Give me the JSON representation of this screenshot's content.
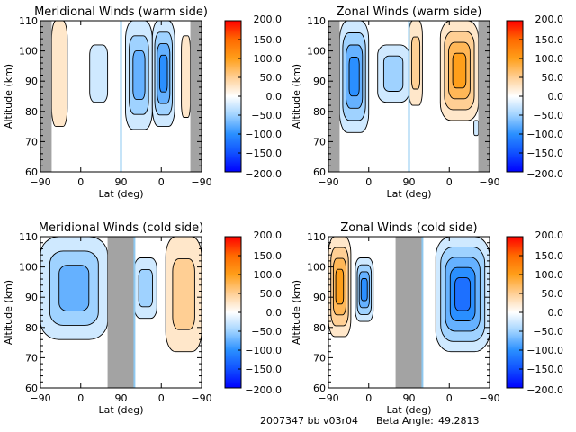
{
  "footer": {
    "run_id": "2007347 bb v03r04",
    "beta_label": "Beta Angle:",
    "beta_value": "49.2813"
  },
  "colorbar": {
    "ticks": [
      "200.0",
      "150.0",
      "100.0",
      "50.0",
      "0.0",
      "−50.0",
      "−100.0",
      "−150.0",
      "−200.0"
    ],
    "range": [
      -200,
      200
    ],
    "stops": [
      {
        "v": 200,
        "c": "#ff0000"
      },
      {
        "v": 150,
        "c": "#ff6a00"
      },
      {
        "v": 100,
        "c": "#ff9f1a"
      },
      {
        "v": 50,
        "c": "#ffcf94"
      },
      {
        "v": 0,
        "c": "#ffffff"
      },
      {
        "v": -50,
        "c": "#9fd2ff"
      },
      {
        "v": -100,
        "c": "#2a8fff"
      },
      {
        "v": -150,
        "c": "#1050ff"
      },
      {
        "v": -200,
        "c": "#0000ff"
      }
    ]
  },
  "colors": {
    "mask_gray": "#a3a3a3",
    "divider_blue": "#8ec8f0"
  },
  "chart_data": [
    {
      "type": "heatmap",
      "subtype": "filled-contour",
      "title": "Meridional Winds (warm side)",
      "xlabel": "Lat (deg)",
      "ylabel": "Altitude (km)",
      "xticks": [
        "−90",
        "0",
        "90",
        "0",
        "−90"
      ],
      "yticks": [
        "110",
        "100",
        "90",
        "80",
        "70",
        "60"
      ],
      "ylim": [
        60,
        110
      ],
      "x_domain": "lat -90 → 90 (ascending) then 90 → -90 (descending)",
      "masked_lat_ranges": [
        [
          -90,
          -65,
          "asc"
        ],
        [
          -65,
          -90,
          "desc"
        ]
      ],
      "divider_at": 90,
      "features": [
        {
          "sign": "positive",
          "lat_range": [
            -65,
            -30
          ],
          "alt_range": [
            75,
            110
          ],
          "peak": "~25",
          "branch": "asc"
        },
        {
          "sign": "negative",
          "lat_range": [
            20,
            60
          ],
          "alt_range": [
            83,
            102
          ],
          "peak": "~-25",
          "branch": "asc"
        },
        {
          "sign": "negative",
          "lat_range": [
            80,
            20
          ],
          "alt_range": [
            74,
            110
          ],
          "peak": "~-75",
          "branch": "desc"
        },
        {
          "sign": "negative",
          "lat_range": [
            20,
            -30
          ],
          "alt_range": [
            75,
            110
          ],
          "peak": "~-100",
          "branch": "desc"
        },
        {
          "sign": "positive",
          "lat_range": [
            -45,
            -65
          ],
          "alt_range": [
            78,
            105
          ],
          "peak": "~25",
          "branch": "desc"
        }
      ]
    },
    {
      "type": "heatmap",
      "subtype": "filled-contour",
      "title": "Zonal Winds (warm side)",
      "xlabel": "Lat (deg)",
      "ylabel": "Altitude (km)",
      "xticks": [
        "−90",
        "0",
        "90",
        "0",
        "−90"
      ],
      "yticks": [
        "110",
        "100",
        "90",
        "80",
        "70",
        "60"
      ],
      "ylim": [
        60,
        110
      ],
      "masked_lat_ranges": [
        [
          -90,
          -65,
          "asc"
        ],
        [
          -65,
          -90,
          "desc"
        ]
      ],
      "divider_at": 90,
      "features": [
        {
          "sign": "negative",
          "lat_range": [
            -65,
            0
          ],
          "alt_range": [
            73,
            110
          ],
          "peak": "~-100",
          "branch": "asc"
        },
        {
          "sign": "negative",
          "lat_range": [
            20,
            90
          ],
          "alt_range": [
            83,
            102
          ],
          "peak": "~-60",
          "branch": "asc"
        },
        {
          "sign": "positive",
          "lat_range": [
            90,
            60
          ],
          "alt_range": [
            82,
            110
          ],
          "peak": "~40",
          "branch": "desc"
        },
        {
          "sign": "positive",
          "lat_range": [
            20,
            -65
          ],
          "alt_range": [
            77,
            110
          ],
          "peak": "~110",
          "branch": "desc"
        },
        {
          "sign": "negative",
          "lat_range": [
            -55,
            -65
          ],
          "alt_range": [
            72,
            77
          ],
          "peak": "~-30",
          "branch": "desc"
        }
      ]
    },
    {
      "type": "heatmap",
      "subtype": "filled-contour",
      "title": "Meridional Winds (cold side)",
      "xlabel": "Lat (deg)",
      "ylabel": "Altitude (km)",
      "xticks": [
        "−90",
        "0",
        "90",
        "0",
        "−90"
      ],
      "yticks": [
        "110",
        "100",
        "90",
        "80",
        "70",
        "60"
      ],
      "ylim": [
        60,
        110
      ],
      "masked_lat_ranges": [
        [
          60,
          90,
          "asc"
        ],
        [
          90,
          60,
          "desc"
        ]
      ],
      "divider_at": 60,
      "features": [
        {
          "sign": "negative",
          "lat_range": [
            -90,
            60
          ],
          "alt_range": [
            76,
            110
          ],
          "peak": "~-75",
          "branch": "asc"
        },
        {
          "sign": "negative",
          "lat_range": [
            60,
            10
          ],
          "alt_range": [
            83,
            103
          ],
          "peak": "~-60",
          "branch": "desc"
        },
        {
          "sign": "positive",
          "lat_range": [
            -10,
            -90
          ],
          "alt_range": [
            72,
            110
          ],
          "peak": "~40",
          "branch": "desc"
        }
      ]
    },
    {
      "type": "heatmap",
      "subtype": "filled-contour",
      "title": "Zonal Winds (cold side)",
      "xlabel": "Lat (deg)",
      "ylabel": "Altitude (km)",
      "xticks": [
        "−90",
        "0",
        "90",
        "0",
        "−90"
      ],
      "yticks": [
        "110",
        "100",
        "90",
        "80",
        "70",
        "60"
      ],
      "ylim": [
        60,
        110
      ],
      "masked_lat_ranges": [
        [
          60,
          90,
          "asc"
        ],
        [
          90,
          60,
          "desc"
        ]
      ],
      "divider_at": 60,
      "features": [
        {
          "sign": "positive",
          "lat_range": [
            -90,
            -40
          ],
          "alt_range": [
            77,
            110
          ],
          "peak": "~110",
          "branch": "asc"
        },
        {
          "sign": "negative",
          "lat_range": [
            -30,
            10
          ],
          "alt_range": [
            82,
            103
          ],
          "peak": "~-90",
          "branch": "asc"
        },
        {
          "sign": "negative",
          "lat_range": [
            30,
            -90
          ],
          "alt_range": [
            72,
            110
          ],
          "peak": "~-120",
          "branch": "desc"
        }
      ]
    }
  ]
}
